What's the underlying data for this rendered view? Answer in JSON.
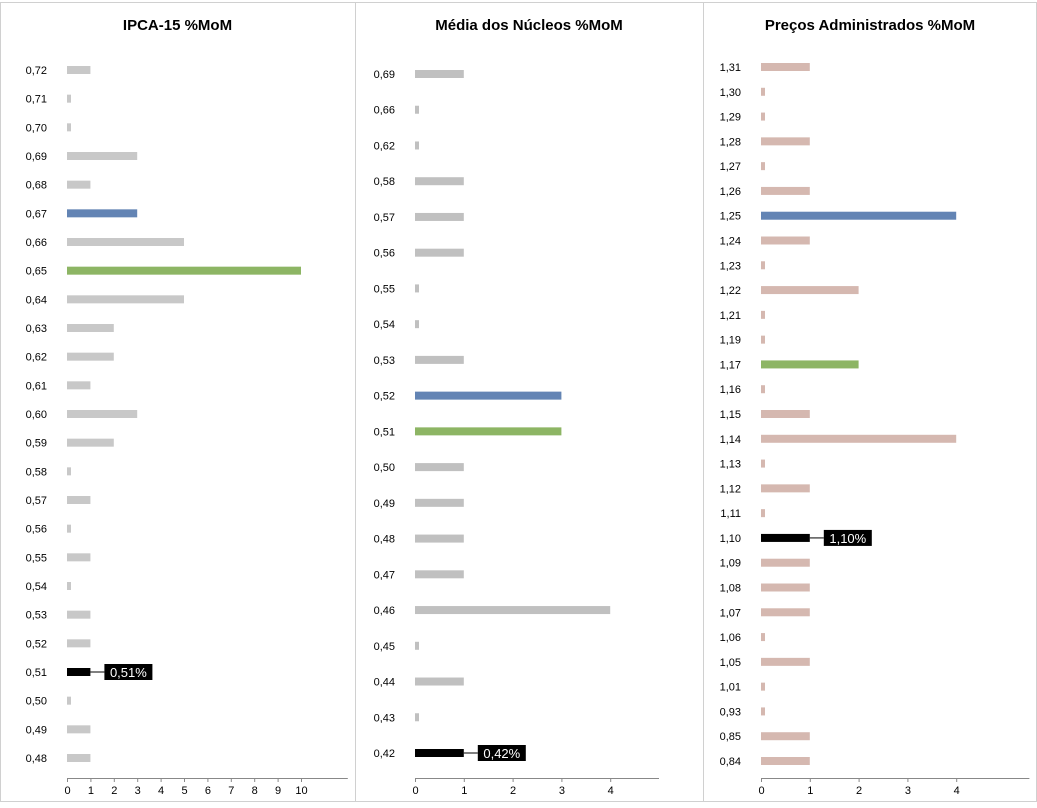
{
  "chart_data": [
    {
      "type": "bar",
      "orientation": "horizontal",
      "title": "IPCA-15 %MoM",
      "categories": [
        "0,48",
        "0,49",
        "0,50",
        "0,51",
        "0,52",
        "0,53",
        "0,54",
        "0,55",
        "0,56",
        "0,57",
        "0,58",
        "0,59",
        "0,60",
        "0,61",
        "0,62",
        "0,63",
        "0,64",
        "0,65",
        "0,66",
        "0,67",
        "0,68",
        "0,69",
        "0,70",
        "0,71",
        "0,72"
      ],
      "values": [
        1,
        1,
        0,
        1,
        1,
        1,
        0,
        1,
        0,
        1,
        0,
        2,
        3,
        1,
        2,
        2,
        5,
        10,
        5,
        3,
        1,
        3,
        0,
        0,
        1
      ],
      "bar_colors": [
        "#c8c8c8",
        "#c8c8c8",
        "#c8c8c8",
        "#000000",
        "#c8c8c8",
        "#c8c8c8",
        "#c8c8c8",
        "#c8c8c8",
        "#c8c8c8",
        "#c8c8c8",
        "#c8c8c8",
        "#c8c8c8",
        "#c8c8c8",
        "#c8c8c8",
        "#c8c8c8",
        "#c8c8c8",
        "#c8c8c8",
        "#8db564",
        "#c8c8c8",
        "#6384b4",
        "#c8c8c8",
        "#c8c8c8",
        "#c8c8c8",
        "#c8c8c8",
        "#c8c8c8"
      ],
      "x_ticks": [
        "0",
        "1",
        "2",
        "3",
        "4",
        "5",
        "6",
        "7",
        "8",
        "9",
        "10"
      ],
      "xlim": [
        0,
        12
      ],
      "annotation": {
        "category": "0,51",
        "label": "0,51%"
      }
    },
    {
      "type": "bar",
      "orientation": "horizontal",
      "title": "Média dos Núcleos %MoM",
      "categories": [
        "0,42",
        "0,43",
        "0,44",
        "0,45",
        "0,46",
        "0,47",
        "0,48",
        "0,49",
        "0,50",
        "0,51",
        "0,52",
        "0,53",
        "0,54",
        "0,55",
        "0,56",
        "0,57",
        "0,58",
        "0,62",
        "0,66",
        "0,69"
      ],
      "values": [
        1,
        0,
        1,
        0,
        4,
        1,
        1,
        1,
        1,
        3,
        3,
        1,
        0,
        0,
        1,
        1,
        1,
        0,
        0,
        1
      ],
      "bar_colors": [
        "#000000",
        "#c0c0c0",
        "#c0c0c0",
        "#c0c0c0",
        "#c0c0c0",
        "#c0c0c0",
        "#c0c0c0",
        "#c0c0c0",
        "#c0c0c0",
        "#8db564",
        "#6384b4",
        "#c0c0c0",
        "#c0c0c0",
        "#c0c0c0",
        "#c0c0c0",
        "#c0c0c0",
        "#c0c0c0",
        "#c0c0c0",
        "#c0c0c0",
        "#c0c0c0"
      ],
      "x_ticks": [
        "0",
        "1",
        "2",
        "3",
        "4"
      ],
      "xlim": [
        0,
        5
      ],
      "annotation": {
        "category": "0,42",
        "label": "0,42%"
      }
    },
    {
      "type": "bar",
      "orientation": "horizontal",
      "title": "Preços Administrados %MoM",
      "categories": [
        "0,84",
        "0,85",
        "0,93",
        "1,01",
        "1,05",
        "1,06",
        "1,07",
        "1,08",
        "1,09",
        "1,10",
        "1,11",
        "1,12",
        "1,13",
        "1,14",
        "1,15",
        "1,16",
        "1,17",
        "1,19",
        "1,21",
        "1,22",
        "1,23",
        "1,24",
        "1,25",
        "1,26",
        "1,27",
        "1,28",
        "1,29",
        "1,30",
        "1,31"
      ],
      "values": [
        1,
        1,
        0,
        0,
        1,
        0,
        1,
        1,
        1,
        1,
        0,
        1,
        0,
        4,
        1,
        0,
        2,
        0,
        0,
        2,
        0,
        1,
        4,
        1,
        0,
        1,
        0,
        0,
        1
      ],
      "bar_colors": [
        "#d5b8b0",
        "#d5b8b0",
        "#d5b8b0",
        "#d5b8b0",
        "#d5b8b0",
        "#d5b8b0",
        "#d5b8b0",
        "#d5b8b0",
        "#d5b8b0",
        "#000000",
        "#d5b8b0",
        "#d5b8b0",
        "#d5b8b0",
        "#d5b8b0",
        "#d5b8b0",
        "#d5b8b0",
        "#8db564",
        "#d5b8b0",
        "#d5b8b0",
        "#d5b8b0",
        "#d5b8b0",
        "#d5b8b0",
        "#6384b4",
        "#d5b8b0",
        "#d5b8b0",
        "#d5b8b0",
        "#d5b8b0",
        "#d5b8b0",
        "#d5b8b0"
      ],
      "x_ticks": [
        "0",
        "1",
        "2",
        "3",
        "4"
      ],
      "xlim": [
        0,
        5.5
      ],
      "annotation": {
        "category": "1,10",
        "label": "1,10%"
      }
    }
  ]
}
